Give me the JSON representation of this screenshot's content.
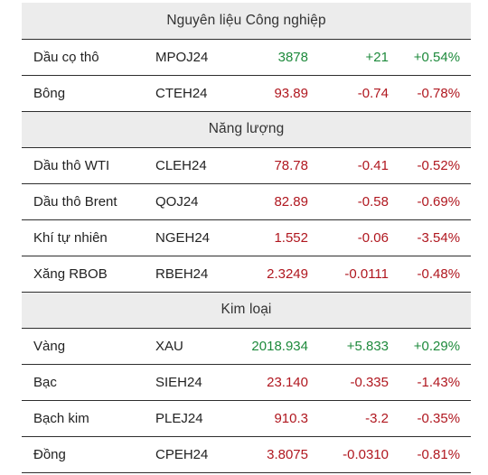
{
  "colors": {
    "up": "#1e8a3c",
    "down": "#b0171f",
    "header_bg": "#ececec"
  },
  "sections": [
    {
      "title": "Nguyên liệu Công nghiệp",
      "rows": [
        {
          "name": "Dầu cọ thô",
          "symbol": "MPOJ24",
          "price": "3878",
          "change": "+21",
          "percent": "+0.54%",
          "direction": "up"
        },
        {
          "name": "Bông",
          "symbol": "CTEH24",
          "price": "93.89",
          "change": "-0.74",
          "percent": "-0.78%",
          "direction": "down"
        }
      ]
    },
    {
      "title": "Năng lượng",
      "rows": [
        {
          "name": "Dầu thô WTI",
          "symbol": "CLEH24",
          "price": "78.78",
          "change": "-0.41",
          "percent": "-0.52%",
          "direction": "down"
        },
        {
          "name": "Dầu thô Brent",
          "symbol": "QOJ24",
          "price": "82.89",
          "change": "-0.58",
          "percent": "-0.69%",
          "direction": "down"
        },
        {
          "name": "Khí tự nhiên",
          "symbol": "NGEH24",
          "price": "1.552",
          "change": "-0.06",
          "percent": "-3.54%",
          "direction": "down"
        },
        {
          "name": "Xăng RBOB",
          "symbol": "RBEH24",
          "price": "2.3249",
          "change": "-0.0111",
          "percent": "-0.48%",
          "direction": "down"
        }
      ]
    },
    {
      "title": "Kim loại",
      "rows": [
        {
          "name": "Vàng",
          "symbol": "XAU",
          "price": "2018.934",
          "change": "+5.833",
          "percent": "+0.29%",
          "direction": "up"
        },
        {
          "name": "Bạc",
          "symbol": "SIEH24",
          "price": "23.140",
          "change": "-0.335",
          "percent": "-1.43%",
          "direction": "down"
        },
        {
          "name": "Bạch kim",
          "symbol": "PLEJ24",
          "price": "910.3",
          "change": "-3.2",
          "percent": "-0.35%",
          "direction": "down"
        },
        {
          "name": "Đồng",
          "symbol": "CPEH24",
          "price": "3.8075",
          "change": "-0.0310",
          "percent": "-0.81%",
          "direction": "down"
        }
      ]
    }
  ]
}
